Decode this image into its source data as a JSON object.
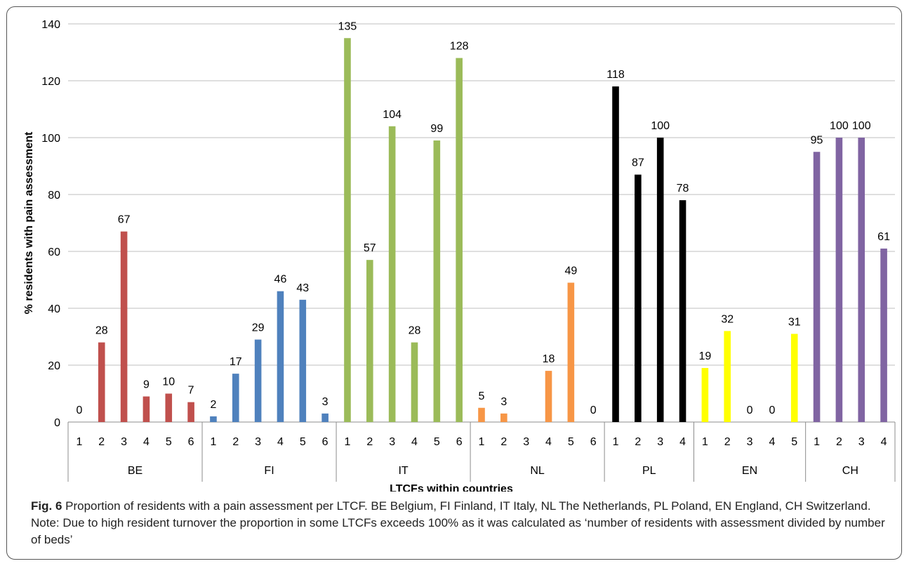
{
  "chart_data": {
    "type": "bar",
    "xlabel": "LTCFs within countries",
    "ylabel": "% residents with pain assessment",
    "ylim": [
      0,
      140
    ],
    "yticks": [
      0,
      20,
      40,
      60,
      80,
      100,
      120,
      140
    ],
    "grid": true,
    "groups": [
      {
        "name": "BE",
        "color": "#C0504D",
        "categories": [
          "1",
          "2",
          "3",
          "4",
          "5",
          "6"
        ],
        "values": [
          0,
          28,
          67,
          9,
          10,
          7
        ]
      },
      {
        "name": "FI",
        "color": "#4F81BD",
        "categories": [
          "1",
          "2",
          "3",
          "4",
          "5",
          "6"
        ],
        "values": [
          2,
          17,
          29,
          46,
          43,
          3
        ]
      },
      {
        "name": "IT",
        "color": "#9BBB59",
        "categories": [
          "1",
          "2",
          "3",
          "4",
          "5",
          "6"
        ],
        "values": [
          135,
          57,
          104,
          28,
          99,
          128
        ]
      },
      {
        "name": "NL",
        "color": "#F79646",
        "categories": [
          "1",
          "2",
          "3",
          "4",
          "5",
          "6"
        ],
        "values": [
          5,
          3,
          null,
          18,
          49,
          0
        ]
      },
      {
        "name": "PL",
        "color": "#000000",
        "categories": [
          "1",
          "2",
          "3",
          "4"
        ],
        "values": [
          118,
          87,
          100,
          78
        ]
      },
      {
        "name": "EN",
        "color": "#FFFF00",
        "categories": [
          "1",
          "2",
          "3",
          "4",
          "5"
        ],
        "values": [
          19,
          32,
          0,
          0,
          31
        ]
      },
      {
        "name": "CH",
        "color": "#8064A2",
        "categories": [
          "1",
          "2",
          "3",
          "4"
        ],
        "values": [
          95,
          100,
          100,
          61
        ]
      }
    ]
  },
  "caption": {
    "label": "Fig. 6",
    "text": " Proportion of residents with a pain assessment per LTCF. BE Belgium, FI Finland, IT Italy, NL The Netherlands, PL Poland, EN England, CH Switzerland. Note: Due to high resident turnover the proportion in some LTCFs exceeds 100% as it was calculated as ‘number of residents with assessment divided by number of beds’"
  }
}
